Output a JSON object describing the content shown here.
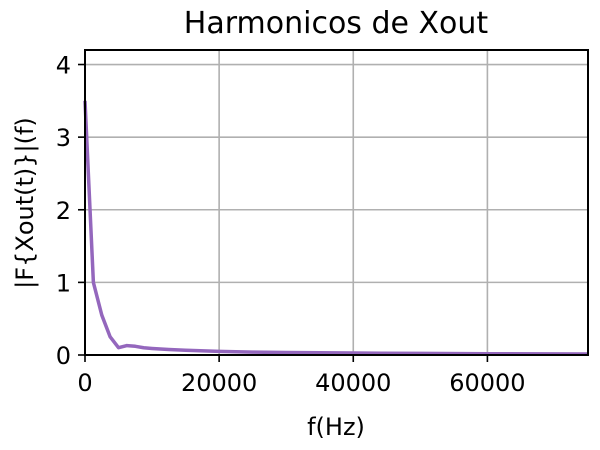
{
  "chart_data": {
    "type": "line",
    "title": "Harmonicos de Xout",
    "xlabel": "f(Hz)",
    "ylabel": "|F{Xout(t)}|(f)",
    "xlim": [
      0,
      75000
    ],
    "ylim": [
      0,
      4.2
    ],
    "xticks": [
      0,
      20000,
      40000,
      60000
    ],
    "yticks": [
      0,
      1,
      2,
      3,
      4
    ],
    "grid": true,
    "series": [
      {
        "color": "#9467bd",
        "x": [
          0,
          1250,
          2500,
          3750,
          5000,
          6250,
          7500,
          8750,
          10000,
          12500,
          15000,
          20000,
          25000,
          30000,
          40000,
          50000,
          60000,
          75000
        ],
        "y": [
          3.5,
          1.0,
          0.55,
          0.25,
          0.1,
          0.13,
          0.12,
          0.1,
          0.09,
          0.075,
          0.065,
          0.05,
          0.04,
          0.035,
          0.027,
          0.022,
          0.018,
          0.014
        ]
      }
    ]
  }
}
